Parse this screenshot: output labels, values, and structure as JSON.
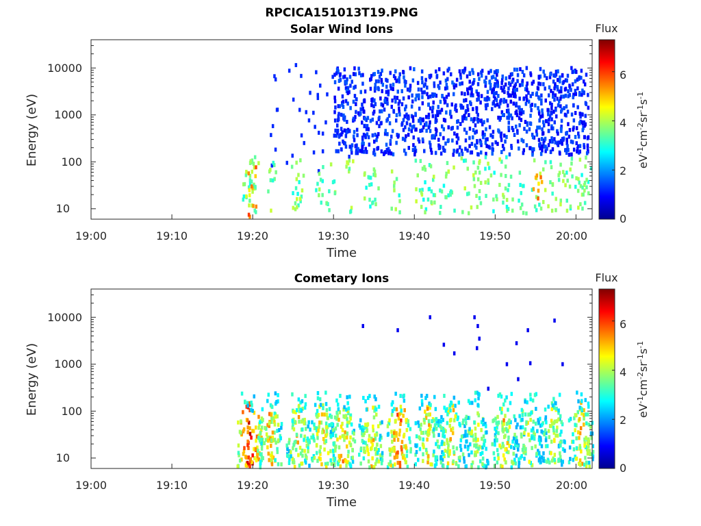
{
  "figure_title": "RPCICA151013T19.PNG",
  "chart_data": [
    {
      "type": "heatmap",
      "title": "Solar Wind Ions",
      "xlabel": "Time",
      "ylabel": "Energy (eV)",
      "x_ticks": [
        "19:00",
        "19:10",
        "19:20",
        "19:30",
        "19:40",
        "19:50",
        "20:00"
      ],
      "x_range_minutes": [
        0,
        62
      ],
      "y_ticks": [
        "10",
        "100",
        "1000",
        "10000"
      ],
      "y_tick_values": [
        10,
        100,
        1000,
        10000
      ],
      "y_scale": "log",
      "ylim": [
        6,
        40000
      ],
      "colorbar": {
        "title": "Flux",
        "ticks": [
          "0",
          "2",
          "4",
          "6"
        ],
        "tick_values": [
          0,
          2,
          4,
          6
        ],
        "range": [
          0,
          7.3
        ],
        "unit_base": [
          "eV",
          "cm",
          "sr",
          "s"
        ],
        "unit_exp": [
          "-1",
          "-2",
          "-1",
          "-1"
        ]
      },
      "data_description": "sparse spectrogram: low-energy (10-100 eV) enhancements after 19:19, scattered low-flux counts up to ~10000 eV after 19:30",
      "colors": {
        "low": "#00008f",
        "mid": "#7fff7f",
        "high": "#800000"
      }
    },
    {
      "type": "heatmap",
      "title": "Cometary Ions",
      "xlabel": "Time",
      "ylabel": "Energy (eV)",
      "x_ticks": [
        "19:00",
        "19:10",
        "19:20",
        "19:30",
        "19:40",
        "19:50",
        "20:00"
      ],
      "x_range_minutes": [
        0,
        62
      ],
      "y_ticks": [
        "10",
        "100",
        "1000",
        "10000"
      ],
      "y_tick_values": [
        10,
        100,
        1000,
        10000
      ],
      "y_scale": "log",
      "ylim": [
        6,
        40000
      ],
      "colorbar": {
        "title": "Flux",
        "ticks": [
          "0",
          "2",
          "4",
          "6"
        ],
        "tick_values": [
          0,
          2,
          4,
          6
        ],
        "range": [
          0,
          7.3
        ],
        "unit_base": [
          "eV",
          "cm",
          "sr",
          "s"
        ],
        "unit_exp": [
          "-1",
          "-2",
          "-1",
          "-1"
        ]
      },
      "data_description": "recurring bursts of cometary ions between 6 and 300 eV starting 19:19, peak flux ~7 near 19:20, isolated counts up to ~10000 eV",
      "burst_centers_minutes": [
        19.5,
        22,
        25.5,
        28.5,
        31,
        34.5,
        38,
        41.5,
        44.5,
        47.5,
        51,
        54,
        57,
        60.5
      ],
      "colors": {
        "low": "#00008f",
        "mid": "#7fff7f",
        "high": "#800000"
      }
    }
  ]
}
